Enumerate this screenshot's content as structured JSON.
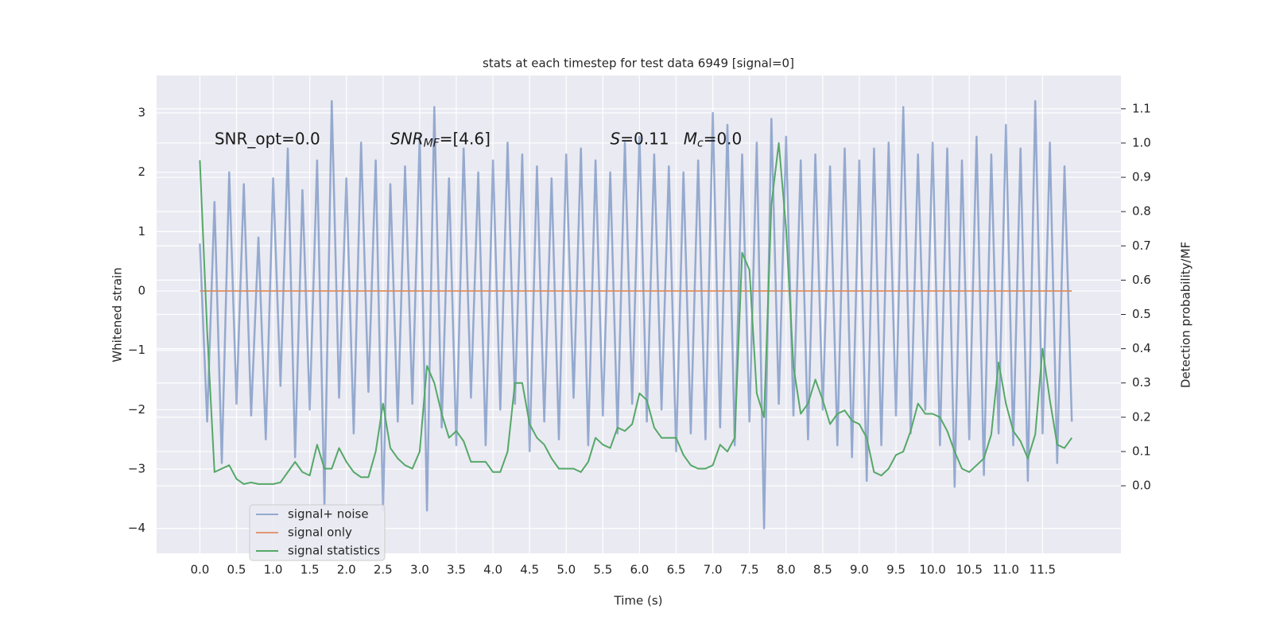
{
  "chart_data": {
    "type": "line",
    "title": "stats at each timestep for test data 6949 [signal=0]",
    "xlabel": "Time (s)",
    "ylabel": "Whitened strain",
    "y2label": "Detection probability/MF",
    "background": "#eaeaf2",
    "grid": true,
    "legend": "lower left",
    "annotations": [
      {
        "x": 0.2,
        "y": 2.55,
        "parts": [
          {
            "text": "SNR_opt=0.0"
          }
        ]
      },
      {
        "x": 2.6,
        "y": 2.55,
        "parts": [
          {
            "text": "SNR",
            "style": "italic"
          },
          {
            "text": "MF",
            "style": "italic",
            "sub": true
          },
          {
            "text": "=[4.6]"
          }
        ]
      },
      {
        "x": 5.6,
        "y": 2.55,
        "parts": [
          {
            "text": "S",
            "style": "italic"
          },
          {
            "text": "=0.11"
          }
        ]
      },
      {
        "x": 6.6,
        "y": 2.55,
        "parts": [
          {
            "text": "M",
            "style": "italic"
          },
          {
            "text": "c",
            "style": "italic",
            "sub": true
          },
          {
            "text": "=0.0"
          }
        ]
      }
    ],
    "x": [
      0.0,
      0.1,
      0.2,
      0.3,
      0.4,
      0.5,
      0.6,
      0.7,
      0.8,
      0.9,
      1.0,
      1.1,
      1.2,
      1.3,
      1.4,
      1.5,
      1.6,
      1.7,
      1.8,
      1.9,
      2.0,
      2.1,
      2.2,
      2.3,
      2.4,
      2.5,
      2.6,
      2.7,
      2.8,
      2.9,
      3.0,
      3.1,
      3.2,
      3.3,
      3.4,
      3.5,
      3.6,
      3.7,
      3.8,
      3.9,
      4.0,
      4.1,
      4.2,
      4.3,
      4.4,
      4.5,
      4.6,
      4.7,
      4.8,
      4.9,
      5.0,
      5.1,
      5.2,
      5.3,
      5.4,
      5.5,
      5.6,
      5.7,
      5.8,
      5.9,
      6.0,
      6.1,
      6.2,
      6.3,
      6.4,
      6.5,
      6.6,
      6.7,
      6.8,
      6.9,
      7.0,
      7.1,
      7.2,
      7.3,
      7.4,
      7.5,
      7.6,
      7.7,
      7.8,
      7.9,
      8.0,
      8.1,
      8.2,
      8.3,
      8.4,
      8.5,
      8.6,
      8.7,
      8.8,
      8.9,
      9.0,
      9.1,
      9.2,
      9.3,
      9.4,
      9.5,
      9.6,
      9.7,
      9.8,
      9.9,
      10.0,
      10.1,
      10.2,
      10.3,
      10.4,
      10.5,
      10.6,
      10.7,
      10.8,
      10.9,
      11.0,
      11.1,
      11.2,
      11.3,
      11.4,
      11.5,
      11.6,
      11.7,
      11.8,
      11.9
    ],
    "series": [
      {
        "name": "signal+ noise",
        "color": "#4c72b0",
        "opacity": 0.55,
        "values": [
          0.8,
          -2.2,
          1.5,
          -2.9,
          2.0,
          -1.9,
          1.8,
          -2.1,
          0.9,
          -2.5,
          1.9,
          -1.6,
          2.4,
          -2.8,
          1.7,
          -2.0,
          2.2,
          -3.6,
          3.2,
          -1.8,
          1.9,
          -2.4,
          2.5,
          -1.7,
          2.2,
          -3.7,
          1.8,
          -2.2,
          2.1,
          -1.9,
          2.6,
          -3.7,
          3.1,
          -2.3,
          1.9,
          -2.6,
          2.4,
          -1.8,
          2.0,
          -2.6,
          2.2,
          -2.0,
          2.5,
          -1.9,
          2.3,
          -2.7,
          2.1,
          -2.2,
          1.9,
          -2.5,
          2.3,
          -1.8,
          2.4,
          -2.6,
          2.2,
          -2.1,
          2.0,
          -2.4,
          2.5,
          -1.9,
          2.6,
          -2.2,
          2.3,
          -2.0,
          2.1,
          -2.7,
          2.0,
          -2.4,
          2.2,
          -2.5,
          3.0,
          -2.3,
          2.8,
          -2.6,
          2.3,
          -2.2,
          2.5,
          -4.0,
          2.9,
          -1.9,
          2.6,
          -2.1,
          2.2,
          -2.5,
          2.3,
          -2.0,
          2.1,
          -2.6,
          2.4,
          -2.8,
          2.2,
          -3.2,
          2.4,
          -2.6,
          2.5,
          -2.1,
          3.1,
          -2.4,
          2.3,
          -2.0,
          2.5,
          -2.6,
          2.4,
          -3.3,
          2.2,
          -2.5,
          2.6,
          -3.1,
          2.3,
          -2.4,
          2.8,
          -2.6,
          2.4,
          -3.2,
          3.2,
          -2.4,
          2.5,
          -2.9,
          2.1,
          -2.2
        ]
      },
      {
        "name": "signal only",
        "color": "#dd8452",
        "opacity": 0.8,
        "values": [
          0,
          0,
          0,
          0,
          0,
          0,
          0,
          0,
          0,
          0,
          0,
          0,
          0,
          0,
          0,
          0,
          0,
          0,
          0,
          0,
          0,
          0,
          0,
          0,
          0,
          0,
          0,
          0,
          0,
          0,
          0,
          0,
          0,
          0,
          0,
          0,
          0,
          0,
          0,
          0,
          0,
          0,
          0,
          0,
          0,
          0,
          0,
          0,
          0,
          0,
          0,
          0,
          0,
          0,
          0,
          0,
          0,
          0,
          0,
          0,
          0,
          0,
          0,
          0,
          0,
          0,
          0,
          0,
          0,
          0,
          0,
          0,
          0,
          0,
          0,
          0,
          0,
          0,
          0,
          0,
          0,
          0,
          0,
          0,
          0,
          0,
          0,
          0,
          0,
          0,
          0,
          0,
          0,
          0,
          0,
          0,
          0,
          0,
          0,
          0,
          0,
          0,
          0,
          0,
          0,
          0,
          0,
          0,
          0,
          0,
          0,
          0,
          0,
          0,
          0,
          0,
          0,
          0,
          0,
          0
        ]
      },
      {
        "name": "signal statistics",
        "color": "#55a868",
        "opacity": 1,
        "axis": "y2",
        "values": [
          0.95,
          0.45,
          0.04,
          0.05,
          0.06,
          0.02,
          0.005,
          0.01,
          0.005,
          0.005,
          0.005,
          0.01,
          0.04,
          0.07,
          0.04,
          0.03,
          0.12,
          0.05,
          0.05,
          0.11,
          0.07,
          0.04,
          0.025,
          0.025,
          0.1,
          0.24,
          0.11,
          0.08,
          0.06,
          0.05,
          0.1,
          0.35,
          0.3,
          0.21,
          0.14,
          0.16,
          0.13,
          0.07,
          0.07,
          0.07,
          0.04,
          0.04,
          0.1,
          0.3,
          0.3,
          0.18,
          0.14,
          0.12,
          0.08,
          0.05,
          0.05,
          0.05,
          0.04,
          0.07,
          0.14,
          0.12,
          0.11,
          0.17,
          0.16,
          0.18,
          0.27,
          0.25,
          0.17,
          0.14,
          0.14,
          0.14,
          0.09,
          0.06,
          0.05,
          0.05,
          0.06,
          0.12,
          0.1,
          0.14,
          0.68,
          0.63,
          0.27,
          0.2,
          0.82,
          1.0,
          0.75,
          0.35,
          0.21,
          0.24,
          0.31,
          0.25,
          0.18,
          0.21,
          0.22,
          0.19,
          0.18,
          0.14,
          0.04,
          0.03,
          0.05,
          0.09,
          0.1,
          0.16,
          0.24,
          0.21,
          0.21,
          0.2,
          0.16,
          0.1,
          0.05,
          0.04,
          0.06,
          0.08,
          0.15,
          0.36,
          0.24,
          0.16,
          0.13,
          0.08,
          0.15,
          0.4,
          0.25,
          0.12,
          0.11,
          0.14
        ]
      }
    ],
    "xlim": [
      -0.59,
      12.57
    ],
    "ylim": [
      -4.42,
      3.63
    ],
    "y2lim": [
      -0.197,
      1.197
    ],
    "xticks": [
      {
        "value": 0,
        "label": "0.0"
      },
      {
        "value": 0.5,
        "label": "0.5"
      },
      {
        "value": 1,
        "label": "1.0"
      },
      {
        "value": 1.5,
        "label": "1.5"
      },
      {
        "value": 2,
        "label": "2.0"
      },
      {
        "value": 2.5,
        "label": "2.5"
      },
      {
        "value": 3,
        "label": "3.0"
      },
      {
        "value": 3.5,
        "label": "3.5"
      },
      {
        "value": 4,
        "label": "4.0"
      },
      {
        "value": 4.5,
        "label": "4.5"
      },
      {
        "value": 5,
        "label": "5.0"
      },
      {
        "value": 5.5,
        "label": "5.5"
      },
      {
        "value": 6,
        "label": "6.0"
      },
      {
        "value": 6.5,
        "label": "6.5"
      },
      {
        "value": 7,
        "label": "7.0"
      },
      {
        "value": 7.5,
        "label": "7.5"
      },
      {
        "value": 8,
        "label": "8.0"
      },
      {
        "value": 8.5,
        "label": "8.5"
      },
      {
        "value": 9,
        "label": "9.0"
      },
      {
        "value": 9.5,
        "label": "9.5"
      },
      {
        "value": 10,
        "label": "10.0"
      },
      {
        "value": 10.5,
        "label": "10.5"
      },
      {
        "value": 11,
        "label": "11.0"
      },
      {
        "value": 11.5,
        "label": "11.5"
      }
    ],
    "yticks": [
      {
        "value": -4,
        "label": "−4"
      },
      {
        "value": -3,
        "label": "−3"
      },
      {
        "value": -2,
        "label": "−2"
      },
      {
        "value": -1,
        "label": "−1"
      },
      0,
      1,
      2,
      3
    ],
    "y2ticks": [
      {
        "value": 0,
        "label": "0.0"
      },
      {
        "value": 0.1,
        "label": "0.1"
      },
      {
        "value": 0.2,
        "label": "0.2"
      },
      {
        "value": 0.3,
        "label": "0.3"
      },
      {
        "value": 0.4,
        "label": "0.4"
      },
      {
        "value": 0.5,
        "label": "0.5"
      },
      {
        "value": 0.6,
        "label": "0.6"
      },
      {
        "value": 0.7,
        "label": "0.7"
      },
      {
        "value": 0.8,
        "label": "0.8"
      },
      {
        "value": 0.9,
        "label": "0.9"
      },
      {
        "value": 1,
        "label": "1.0"
      },
      {
        "value": 1.1,
        "label": "1.1"
      }
    ]
  }
}
